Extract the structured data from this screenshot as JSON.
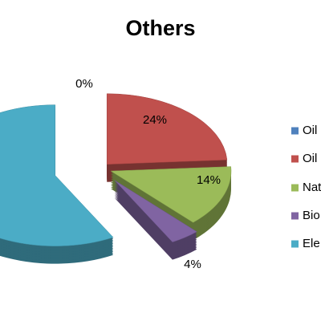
{
  "chart_data": {
    "type": "pie",
    "title": "Others",
    "categories": [
      "Oil",
      "Oil",
      "Nat",
      "Bio",
      "Ele"
    ],
    "values": [
      0,
      24,
      14,
      4,
      58
    ],
    "value_labels": [
      "0%",
      "24%",
      "14%",
      "4%",
      null
    ],
    "colors": [
      "#4f81bd",
      "#c0504d",
      "#9bbb59",
      "#8064a2",
      "#4bacc6"
    ],
    "legend": "right"
  }
}
